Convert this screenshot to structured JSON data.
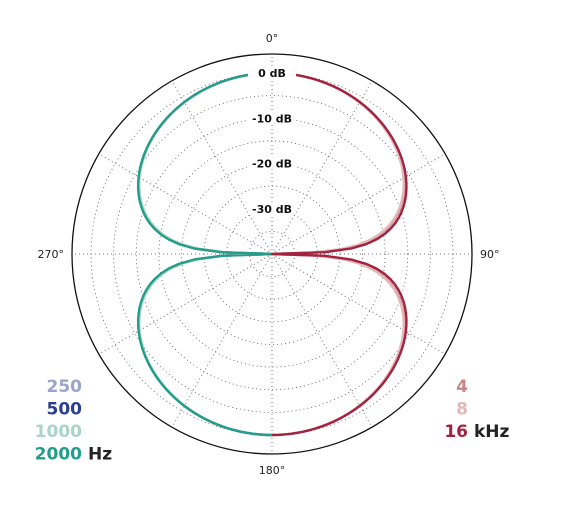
{
  "chart_data": {
    "type": "polar",
    "angle_labels": [
      {
        "angle": 0,
        "label": "0°"
      },
      {
        "angle": 90,
        "label": "90°"
      },
      {
        "angle": 180,
        "label": "180°"
      },
      {
        "angle": 270,
        "label": "270°"
      }
    ],
    "radial_axis": {
      "min_db": -40,
      "max_db": 0,
      "ring_step_db": 5,
      "labeled_rings": [
        {
          "db": 0,
          "label": "0 dB"
        },
        {
          "db": -10,
          "label": "-10 dB"
        },
        {
          "db": -20,
          "label": "-20 dB"
        },
        {
          "db": -30,
          "label": "-30 dB"
        }
      ]
    },
    "angular_grid_step_deg": 30,
    "grid": true,
    "pattern": "figure-8 (bidirectional)",
    "series": [
      {
        "name": "250",
        "side": "left",
        "color": "#9aa3cc",
        "shape": 1.02
      },
      {
        "name": "500",
        "side": "left",
        "color": "#2b3f8f",
        "shape": 1.0
      },
      {
        "name": "1000",
        "side": "left",
        "color": "#a9d6c4",
        "shape": 1.03
      },
      {
        "name": "2000",
        "side": "left",
        "color": "#239d8a",
        "shape": 0.99
      },
      {
        "name": "4",
        "side": "right",
        "color": "#c98585",
        "shape": 1.05
      },
      {
        "name": "8",
        "side": "right",
        "color": "#e2b8b8",
        "shape": 1.07
      },
      {
        "name": "16",
        "side": "right",
        "color": "#a3223f",
        "shape": 0.97
      }
    ],
    "legend_left": {
      "entries": [
        "250",
        "500",
        "1000",
        "2000"
      ],
      "colors": [
        "#9aa3cc",
        "#2b3f8f",
        "#a9d6c4",
        "#239d8a"
      ],
      "unit": "Hz"
    },
    "legend_right": {
      "entries": [
        "4",
        "8",
        "16"
      ],
      "colors": [
        "#c98585",
        "#e2b8b8",
        "#a3223f"
      ],
      "unit": "kHz"
    }
  }
}
